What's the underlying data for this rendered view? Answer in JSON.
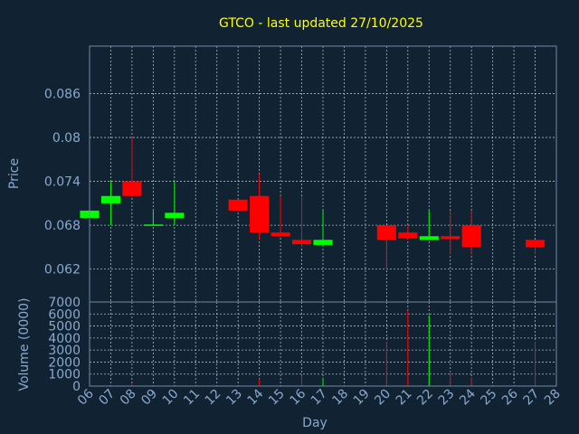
{
  "chart_data": {
    "type": "candlestick",
    "title": "GTCO - last updated 27/10/2025",
    "xlabel": "Day",
    "price_panel": {
      "ylabel": "Price",
      "ylim": [
        0.0575,
        0.0925
      ],
      "yticks": [
        "0.086",
        "0.08",
        "0.074",
        "0.068",
        "0.062"
      ],
      "ytick_values": [
        0.086,
        0.08,
        0.074,
        0.068,
        0.062
      ],
      "grid": true
    },
    "volume_panel": {
      "ylabel": "Volume (0000)",
      "ylim": [
        0,
        7000
      ],
      "yticks": [
        "7000",
        "6000",
        "5000",
        "4000",
        "3000",
        "2000",
        "1000",
        "0"
      ],
      "ytick_values": [
        7000,
        6000,
        5000,
        4000,
        3000,
        2000,
        1000,
        0
      ],
      "grid": true
    },
    "x_range": [
      0,
      22
    ],
    "x_ticks": [
      "06",
      "07",
      "08",
      "09",
      "10",
      "11",
      "12",
      "13",
      "14",
      "15",
      "16",
      "17",
      "18",
      "19",
      "20",
      "21",
      "22",
      "23",
      "24",
      "25",
      "26",
      "27",
      "28"
    ],
    "up_color": "#00ff00",
    "down_color": "#ff0000",
    "candles": [
      {
        "day": "06",
        "x": 0,
        "open": 0.069,
        "high": 0.07,
        "low": 0.069,
        "close": 0.07,
        "volume": 0
      },
      {
        "day": "07",
        "x": 1,
        "open": 0.071,
        "high": 0.074,
        "low": 0.068,
        "close": 0.072,
        "volume": 0
      },
      {
        "day": "08",
        "x": 2,
        "open": 0.074,
        "high": 0.08,
        "low": 0.072,
        "close": 0.072,
        "volume": 200
      },
      {
        "day": "09",
        "x": 3,
        "open": 0.068,
        "high": 0.07,
        "low": 0.068,
        "close": 0.0681,
        "volume": 0
      },
      {
        "day": "10",
        "x": 4,
        "open": 0.069,
        "high": 0.074,
        "low": 0.068,
        "close": 0.0697,
        "volume": 0
      },
      {
        "day": "13",
        "x": 7,
        "open": 0.0715,
        "high": 0.0715,
        "low": 0.07,
        "close": 0.07,
        "volume": 0
      },
      {
        "day": "14",
        "x": 8,
        "open": 0.072,
        "high": 0.075,
        "low": 0.066,
        "close": 0.067,
        "volume": 600
      },
      {
        "day": "15",
        "x": 9,
        "open": 0.067,
        "high": 0.072,
        "low": 0.0665,
        "close": 0.0665,
        "volume": 0
      },
      {
        "day": "16",
        "x": 10,
        "open": 0.066,
        "high": 0.072,
        "low": 0.065,
        "close": 0.0654,
        "volume": 900
      },
      {
        "day": "17",
        "x": 11,
        "open": 0.0653,
        "high": 0.07,
        "low": 0.0653,
        "close": 0.066,
        "volume": 700
      },
      {
        "day": "20",
        "x": 14,
        "open": 0.068,
        "high": 0.068,
        "low": 0.062,
        "close": 0.066,
        "volume": 3700
      },
      {
        "day": "21",
        "x": 15,
        "open": 0.067,
        "high": 0.068,
        "low": 0.066,
        "close": 0.0662,
        "volume": 6300
      },
      {
        "day": "22",
        "x": 16,
        "open": 0.066,
        "high": 0.07,
        "low": 0.066,
        "close": 0.0665,
        "volume": 5900
      },
      {
        "day": "23",
        "x": 17,
        "open": 0.0665,
        "high": 0.07,
        "low": 0.064,
        "close": 0.0661,
        "volume": 1200
      },
      {
        "day": "24",
        "x": 18,
        "open": 0.068,
        "high": 0.07,
        "low": 0.064,
        "close": 0.065,
        "volume": 700
      },
      {
        "day": "27",
        "x": 21,
        "open": 0.066,
        "high": 0.066,
        "low": 0.064,
        "close": 0.065,
        "volume": 3700
      }
    ]
  }
}
